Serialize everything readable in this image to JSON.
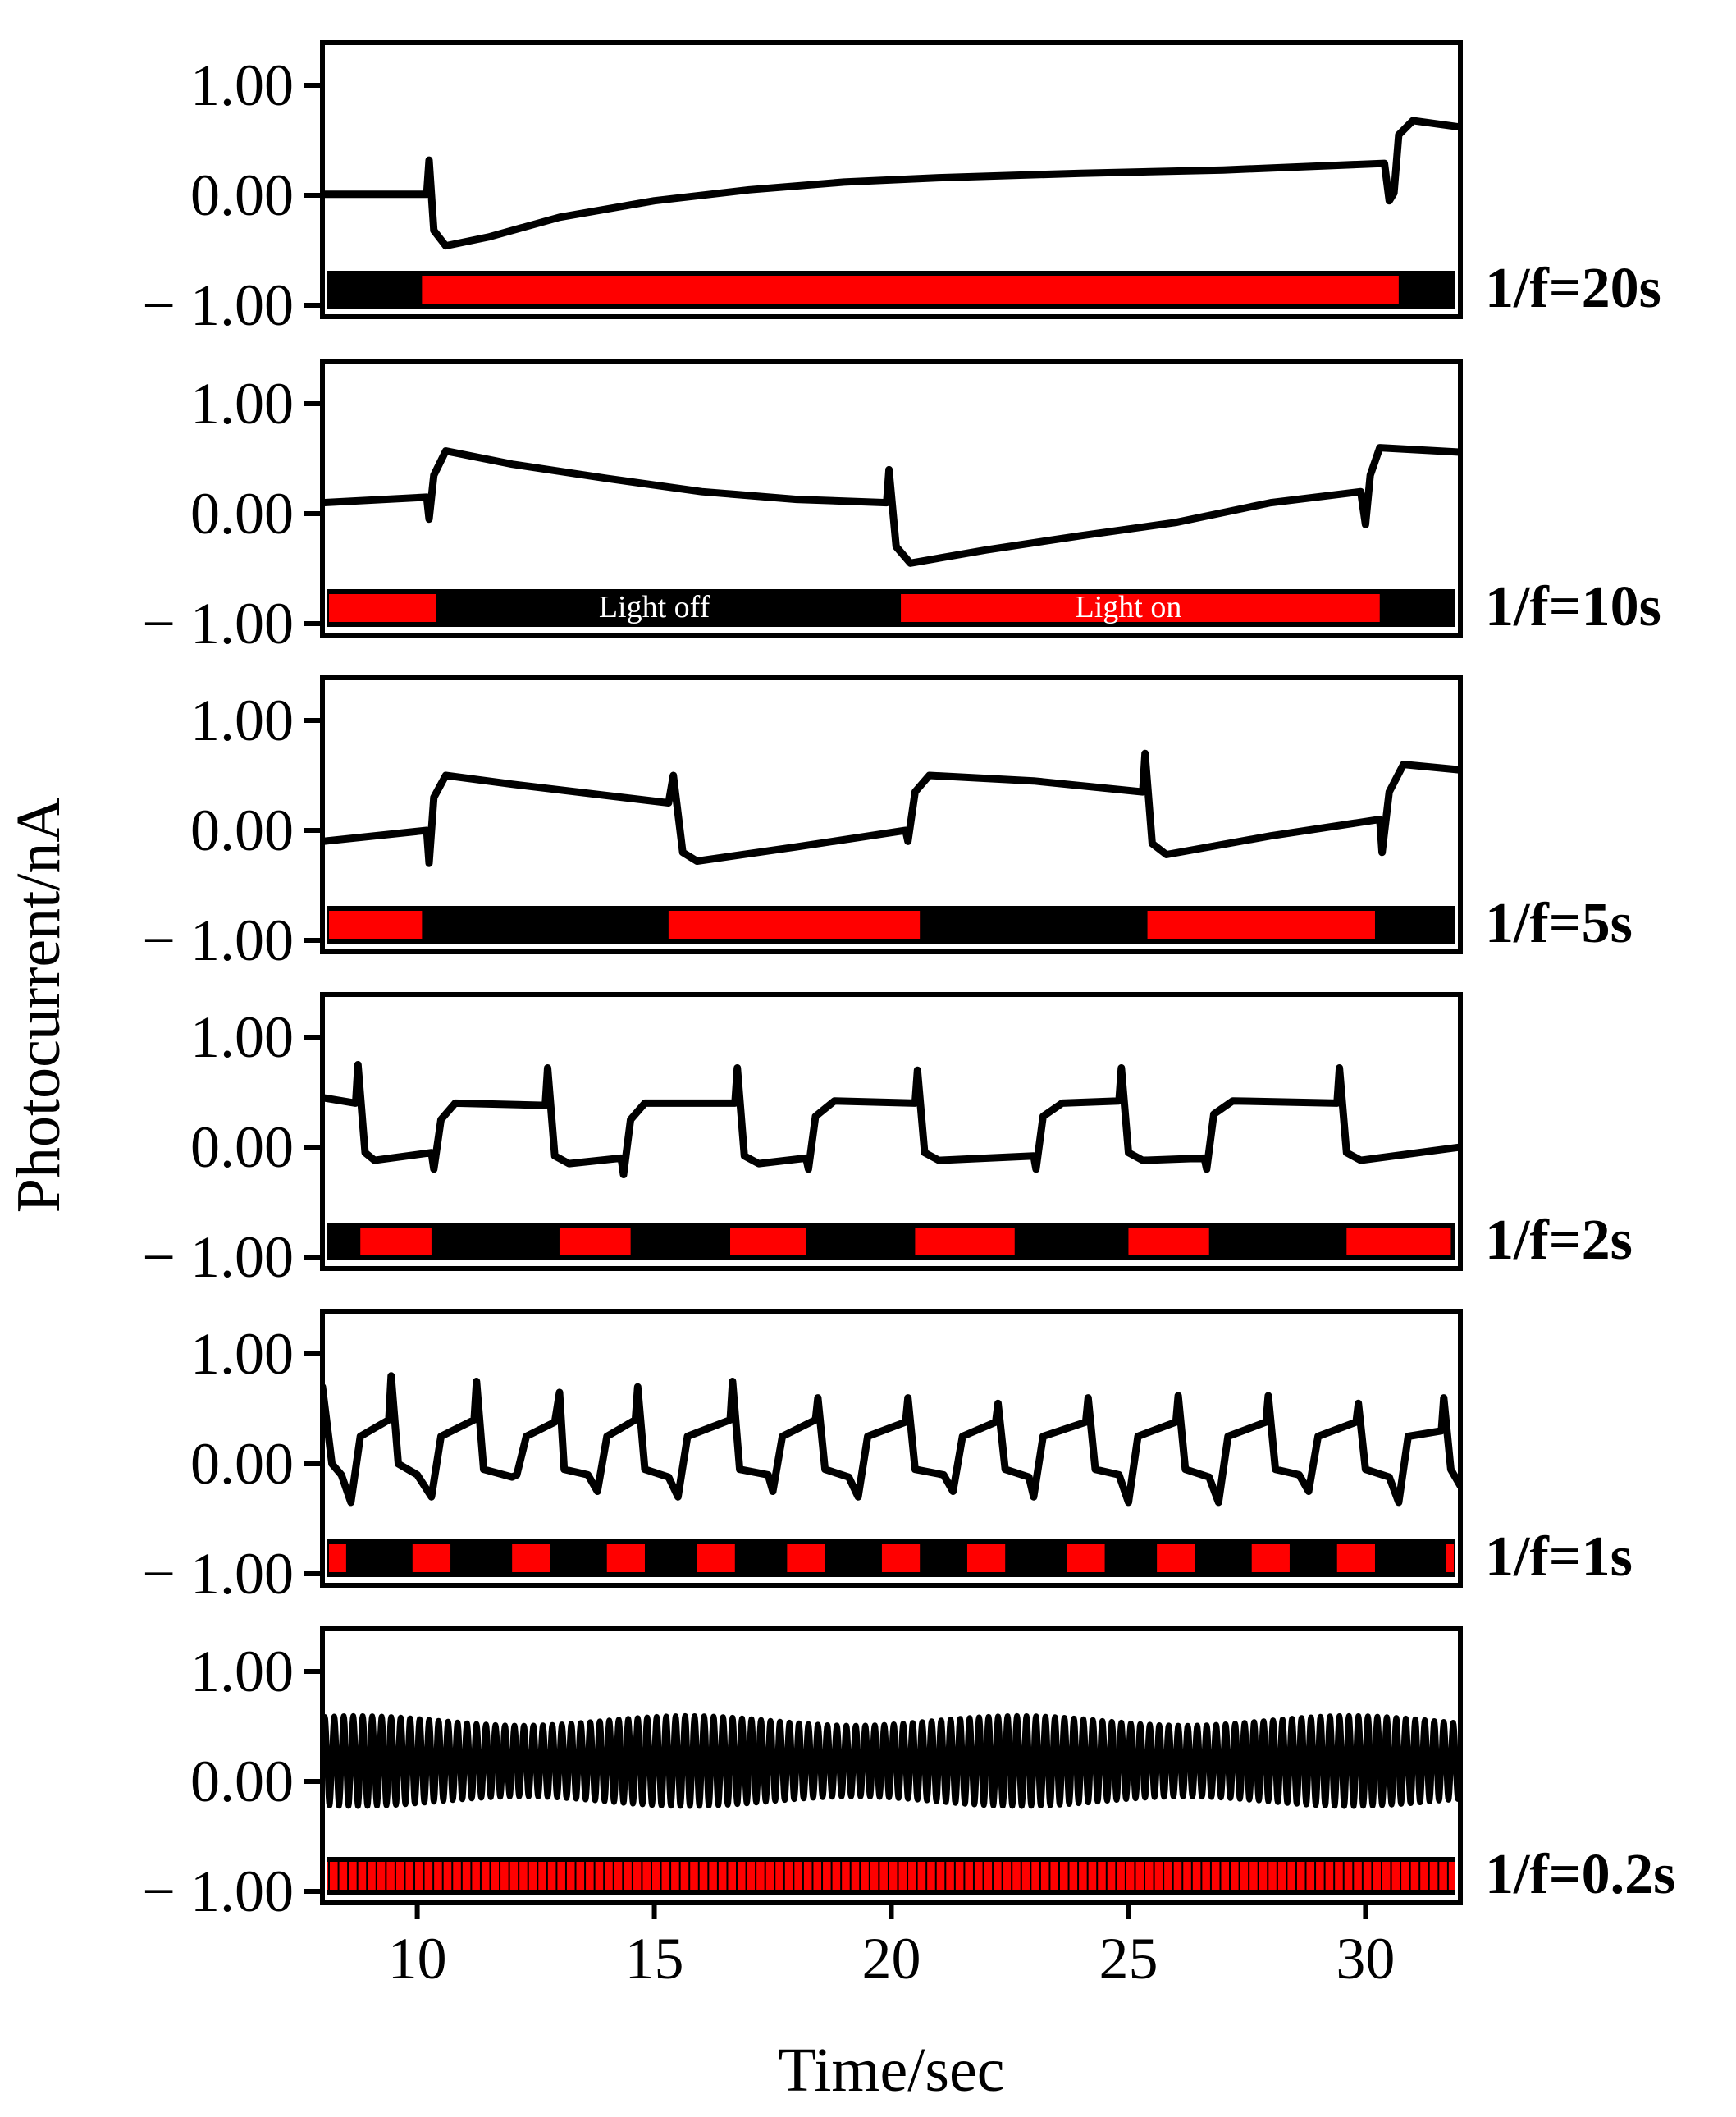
{
  "chart_data": {
    "type": "line",
    "xlabel": "Time/sec",
    "ylabel": "Photocurrent/nA",
    "xlim": [
      8,
      32
    ],
    "xticks": [
      10,
      15,
      20,
      25,
      30
    ],
    "xtick_labels": [
      "10",
      "15",
      "20",
      "25",
      "30"
    ],
    "ylim": [
      -1.0,
      1.0
    ],
    "yticks": [
      1.0,
      0.0,
      -1.0
    ],
    "ytick_labels": [
      "1.00",
      "0.00",
      "− 1.00"
    ],
    "grid": false,
    "colors": {
      "trace": "#000000",
      "light_on": "#ff0000",
      "light_off": "#000000"
    },
    "panels": [
      {
        "label": "1/f=20s",
        "period_s": 20,
        "light_on_intervals": [
          [
            10.1,
            30.7
          ]
        ],
        "annotations": [],
        "trace": [
          [
            8.0,
            0.01
          ],
          [
            10.2,
            0.01
          ],
          [
            10.25,
            0.32
          ],
          [
            10.35,
            -0.32
          ],
          [
            10.6,
            -0.46
          ],
          [
            11.5,
            -0.38
          ],
          [
            13,
            -0.2
          ],
          [
            15,
            -0.05
          ],
          [
            17,
            0.05
          ],
          [
            19,
            0.12
          ],
          [
            21,
            0.16
          ],
          [
            24,
            0.2
          ],
          [
            27,
            0.23
          ],
          [
            30.4,
            0.29
          ],
          [
            30.5,
            -0.05
          ],
          [
            30.6,
            0.02
          ],
          [
            30.7,
            0.55
          ],
          [
            31,
            0.68
          ],
          [
            32,
            0.62
          ]
        ]
      },
      {
        "label": "1/f=10s",
        "period_s": 10,
        "light_on_intervals": [
          [
            8.1,
            10.4
          ],
          [
            20.2,
            30.3
          ]
        ],
        "annotations": [
          {
            "text": "Light off",
            "x": 15.0
          },
          {
            "text": "Light on",
            "x": 25.0
          }
        ],
        "trace": [
          [
            8.0,
            0.1
          ],
          [
            10.2,
            0.15
          ],
          [
            10.25,
            -0.05
          ],
          [
            10.35,
            0.35
          ],
          [
            10.6,
            0.57
          ],
          [
            12,
            0.45
          ],
          [
            14,
            0.32
          ],
          [
            16,
            0.2
          ],
          [
            18,
            0.13
          ],
          [
            19.9,
            0.1
          ],
          [
            19.95,
            0.4
          ],
          [
            20.1,
            -0.3
          ],
          [
            20.4,
            -0.45
          ],
          [
            22,
            -0.33
          ],
          [
            24,
            -0.2
          ],
          [
            26,
            -0.08
          ],
          [
            28,
            0.1
          ],
          [
            29.9,
            0.2
          ],
          [
            30,
            -0.1
          ],
          [
            30.1,
            0.35
          ],
          [
            30.3,
            0.6
          ],
          [
            32,
            0.56
          ]
        ]
      },
      {
        "label": "1/f=5s",
        "period_s": 5,
        "light_on_intervals": [
          [
            8.1,
            10.1
          ],
          [
            15.3,
            20.6
          ],
          [
            25.4,
            30.2
          ]
        ],
        "annotations": [],
        "trace": [
          [
            8.0,
            -0.1
          ],
          [
            10.2,
            0.0
          ],
          [
            10.25,
            -0.3
          ],
          [
            10.35,
            0.3
          ],
          [
            10.6,
            0.5
          ],
          [
            12,
            0.42
          ],
          [
            15.3,
            0.25
          ],
          [
            15.4,
            0.5
          ],
          [
            15.6,
            -0.2
          ],
          [
            15.9,
            -0.28
          ],
          [
            18,
            -0.15
          ],
          [
            20.3,
            0.0
          ],
          [
            20.35,
            -0.1
          ],
          [
            20.5,
            0.35
          ],
          [
            20.8,
            0.5
          ],
          [
            23,
            0.45
          ],
          [
            25.3,
            0.35
          ],
          [
            25.35,
            0.7
          ],
          [
            25.5,
            -0.12
          ],
          [
            25.8,
            -0.22
          ],
          [
            28,
            -0.05
          ],
          [
            30.3,
            0.1
          ],
          [
            30.35,
            -0.2
          ],
          [
            30.5,
            0.35
          ],
          [
            30.8,
            0.6
          ],
          [
            32,
            0.55
          ]
        ]
      },
      {
        "label": "1/f=2s",
        "period_s": 2,
        "light_on_intervals": [
          [
            8.8,
            10.3
          ],
          [
            13.0,
            14.5
          ],
          [
            16.6,
            18.2
          ],
          [
            20.5,
            22.6
          ],
          [
            25.0,
            26.7
          ],
          [
            29.6,
            31.8
          ]
        ],
        "annotations": [],
        "trace": [
          [
            8.0,
            0.45
          ],
          [
            8.7,
            0.4
          ],
          [
            8.75,
            0.75
          ],
          [
            8.9,
            -0.05
          ],
          [
            9.1,
            -0.12
          ],
          [
            10.3,
            -0.05
          ],
          [
            10.35,
            -0.2
          ],
          [
            10.5,
            0.25
          ],
          [
            10.8,
            0.4
          ],
          [
            12.7,
            0.38
          ],
          [
            12.75,
            0.72
          ],
          [
            12.9,
            -0.08
          ],
          [
            13.2,
            -0.15
          ],
          [
            14.3,
            -0.1
          ],
          [
            14.35,
            -0.25
          ],
          [
            14.5,
            0.25
          ],
          [
            14.8,
            0.4
          ],
          [
            16.7,
            0.4
          ],
          [
            16.75,
            0.72
          ],
          [
            16.9,
            -0.08
          ],
          [
            17.2,
            -0.15
          ],
          [
            18.2,
            -0.1
          ],
          [
            18.25,
            -0.2
          ],
          [
            18.4,
            0.28
          ],
          [
            18.8,
            0.42
          ],
          [
            20.5,
            0.4
          ],
          [
            20.55,
            0.7
          ],
          [
            20.7,
            -0.05
          ],
          [
            21.0,
            -0.12
          ],
          [
            23.0,
            -0.08
          ],
          [
            23.05,
            -0.2
          ],
          [
            23.2,
            0.28
          ],
          [
            23.6,
            0.4
          ],
          [
            24.8,
            0.42
          ],
          [
            24.85,
            0.72
          ],
          [
            25.0,
            -0.05
          ],
          [
            25.3,
            -0.12
          ],
          [
            26.6,
            -0.1
          ],
          [
            26.65,
            -0.2
          ],
          [
            26.8,
            0.3
          ],
          [
            27.2,
            0.42
          ],
          [
            29.4,
            0.4
          ],
          [
            29.45,
            0.72
          ],
          [
            29.6,
            -0.05
          ],
          [
            29.9,
            -0.12
          ],
          [
            32,
            0.0
          ]
        ]
      },
      {
        "label": "1/f=1s",
        "period_s": 1,
        "light_on_intervals": [
          [
            8.1,
            8.5
          ],
          [
            9.9,
            10.7
          ],
          [
            12.0,
            12.8
          ],
          [
            14.0,
            14.8
          ],
          [
            15.9,
            16.7
          ],
          [
            17.8,
            18.6
          ],
          [
            19.8,
            20.6
          ],
          [
            21.6,
            22.4
          ],
          [
            23.7,
            24.5
          ],
          [
            25.6,
            26.4
          ],
          [
            27.6,
            28.4
          ],
          [
            29.4,
            30.2
          ],
          [
            31.7,
            31.9
          ]
        ],
        "annotations": [],
        "trace": [
          [
            8.0,
            0.7
          ],
          [
            8.2,
            0.0
          ],
          [
            8.4,
            -0.1
          ],
          [
            8.6,
            -0.35
          ],
          [
            8.8,
            0.25
          ],
          [
            9.4,
            0.4
          ],
          [
            9.45,
            0.8
          ],
          [
            9.6,
            0.0
          ],
          [
            10.0,
            -0.1
          ],
          [
            10.3,
            -0.3
          ],
          [
            10.5,
            0.25
          ],
          [
            11.2,
            0.4
          ],
          [
            11.25,
            0.75
          ],
          [
            11.4,
            -0.05
          ],
          [
            12.0,
            -0.12
          ],
          [
            12.1,
            -0.1
          ],
          [
            12.3,
            0.25
          ],
          [
            12.9,
            0.38
          ],
          [
            13.0,
            0.65
          ],
          [
            13.1,
            -0.05
          ],
          [
            13.6,
            -0.1
          ],
          [
            13.8,
            -0.25
          ],
          [
            14.0,
            0.25
          ],
          [
            14.6,
            0.4
          ],
          [
            14.65,
            0.7
          ],
          [
            14.8,
            -0.05
          ],
          [
            15.3,
            -0.12
          ],
          [
            15.5,
            -0.3
          ],
          [
            15.7,
            0.25
          ],
          [
            16.6,
            0.4
          ],
          [
            16.65,
            0.75
          ],
          [
            16.8,
            -0.05
          ],
          [
            17.4,
            -0.1
          ],
          [
            17.5,
            -0.25
          ],
          [
            17.7,
            0.25
          ],
          [
            18.4,
            0.4
          ],
          [
            18.45,
            0.6
          ],
          [
            18.6,
            -0.05
          ],
          [
            19.1,
            -0.12
          ],
          [
            19.3,
            -0.3
          ],
          [
            19.5,
            0.25
          ],
          [
            20.3,
            0.38
          ],
          [
            20.35,
            0.6
          ],
          [
            20.5,
            -0.05
          ],
          [
            21.1,
            -0.1
          ],
          [
            21.3,
            -0.25
          ],
          [
            21.5,
            0.25
          ],
          [
            22.2,
            0.38
          ],
          [
            22.25,
            0.55
          ],
          [
            22.4,
            -0.05
          ],
          [
            22.9,
            -0.12
          ],
          [
            23.0,
            -0.3
          ],
          [
            23.2,
            0.25
          ],
          [
            24.1,
            0.38
          ],
          [
            24.15,
            0.6
          ],
          [
            24.3,
            -0.05
          ],
          [
            24.8,
            -0.1
          ],
          [
            25.0,
            -0.35
          ],
          [
            25.2,
            0.25
          ],
          [
            26.0,
            0.38
          ],
          [
            26.05,
            0.62
          ],
          [
            26.2,
            -0.05
          ],
          [
            26.7,
            -0.12
          ],
          [
            26.9,
            -0.35
          ],
          [
            27.1,
            0.25
          ],
          [
            27.9,
            0.38
          ],
          [
            27.95,
            0.62
          ],
          [
            28.1,
            -0.05
          ],
          [
            28.6,
            -0.1
          ],
          [
            28.8,
            -0.25
          ],
          [
            29.0,
            0.25
          ],
          [
            29.8,
            0.38
          ],
          [
            29.85,
            0.55
          ],
          [
            30.0,
            -0.05
          ],
          [
            30.5,
            -0.12
          ],
          [
            30.7,
            -0.35
          ],
          [
            30.9,
            0.25
          ],
          [
            31.6,
            0.3
          ],
          [
            31.65,
            0.6
          ],
          [
            31.8,
            -0.05
          ],
          [
            32,
            -0.2
          ]
        ]
      },
      {
        "label": "1/f=0.2s",
        "period_s": 0.2,
        "light_on_intervals": [
          [
            8.0,
            32.0
          ]
        ],
        "annotations": [],
        "trace_style": "oscillating band",
        "oscillation_min": -0.18,
        "oscillation_max": 0.55
      }
    ]
  }
}
